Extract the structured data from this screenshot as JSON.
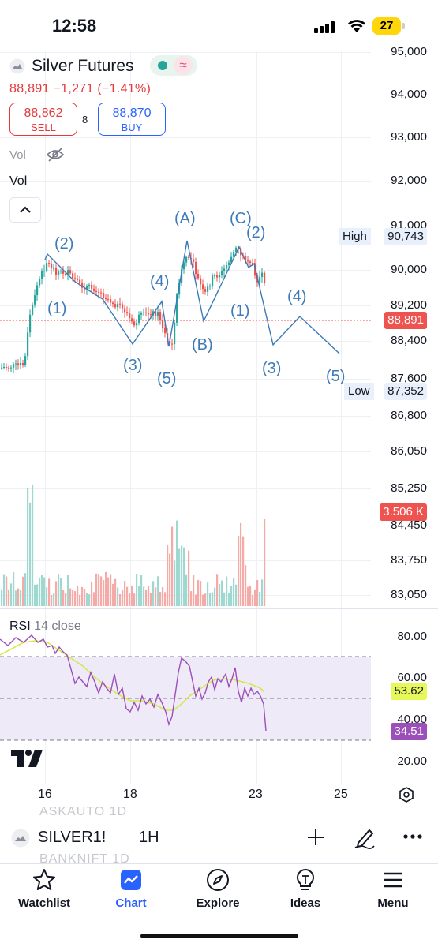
{
  "status_bar": {
    "time": "12:58",
    "battery": "27"
  },
  "symbol": {
    "name": "Silver Futures",
    "quote_line": "88,891  −1,271 (−1.41%)"
  },
  "trade": {
    "sell_price": "88,862",
    "sell_label": "SELL",
    "spread": "8",
    "buy_price": "88,870",
    "buy_label": "BUY"
  },
  "indicators": {
    "vol_hidden": "Vol",
    "vol": "Vol"
  },
  "price_axis": [
    "95,000",
    "94,000",
    "93,000",
    "92,000",
    "91,000",
    "90,000",
    "89,200",
    "88,400",
    "87,600",
    "86,800",
    "86,050",
    "85,250",
    "84,450",
    "83,750",
    "83,050"
  ],
  "price_tags": {
    "high_label": "High",
    "high_value": "90,743",
    "current": "88,891",
    "low_label": "Low",
    "low_value": "87,352",
    "volume": "3.506 K"
  },
  "wave_labels": {
    "w_2a": "(2)",
    "w_1a": "(1)",
    "w_4a": "(4)",
    "w_3a": "(3)",
    "w_5a": "(5)",
    "w_A": "(A)",
    "w_B": "(B)",
    "w_C": "(C)",
    "w_2b": "(2)",
    "w_1b": "(1)",
    "w_4b": "(4)",
    "w_3b": "(3)",
    "w_5b": "(5)"
  },
  "rsi": {
    "label": "RSI",
    "params": "14 close",
    "axis": [
      "80.00",
      "60.00",
      "40.00",
      "20.00"
    ],
    "value_ma": "53.62",
    "value_rsi": "34.51"
  },
  "time_axis": [
    "16",
    "18",
    "23",
    "25"
  ],
  "toolbar": {
    "symbol": "SILVER1!",
    "interval": "1H",
    "ghost_top": "ASKAUTO   1D",
    "ghost_bottom": "BANKNIFT   1D"
  },
  "tabs": [
    "Watchlist",
    "Chart",
    "Explore",
    "Ideas",
    "Menu"
  ],
  "colors": {
    "up": "#26a69a",
    "down": "#ef5350",
    "accent": "#2962ff",
    "rsi": "#9c4fb8",
    "rsi_ma": "#d4e84a",
    "wave": "#3d7ab8"
  }
}
